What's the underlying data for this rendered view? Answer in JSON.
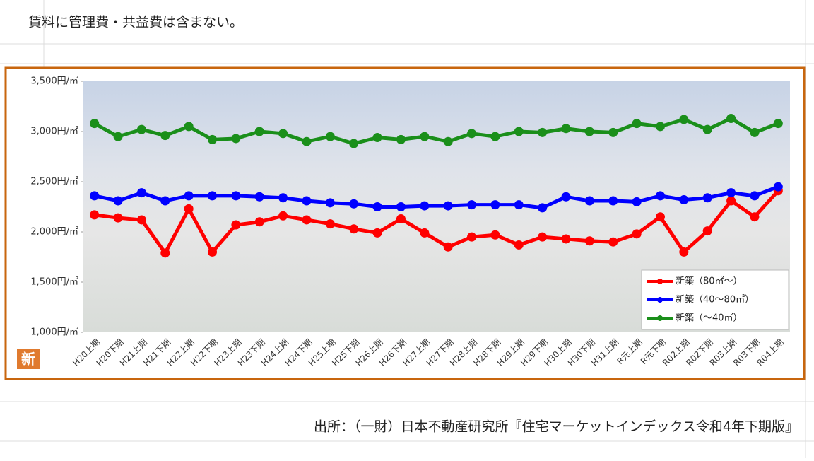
{
  "note": "賃料に管理費・共益費は含まない。",
  "source": "出所：（一財）日本不動産研究所『住宅マーケットインデックス令和4年下期版』",
  "chart_data": {
    "type": "line",
    "categories": [
      "H20上期",
      "H20下期",
      "H21上期",
      "H21下期",
      "H22上期",
      "H22下期",
      "H23上期",
      "H23下期",
      "H24上期",
      "H24下期",
      "H25上期",
      "H25下期",
      "H26上期",
      "H26下期",
      "H27上期",
      "H27下期",
      "H28上期",
      "H28下期",
      "H29上期",
      "H29下期",
      "H30上期",
      "H30下期",
      "H31上期",
      "R元上期",
      "R元下期",
      "R02上期",
      "R02下期",
      "R03上期",
      "R03下期",
      "R04上期"
    ],
    "series": [
      {
        "name": "新築（80㎡～）",
        "color": "#ff0000",
        "values": [
          2170,
          2140,
          2120,
          1790,
          2230,
          1800,
          2070,
          2100,
          2160,
          2120,
          2080,
          2030,
          1990,
          2130,
          1990,
          1850,
          1950,
          1970,
          1870,
          1950,
          1930,
          1910,
          1900,
          1980,
          2150,
          1800,
          2010,
          2310,
          2150,
          2410
        ]
      },
      {
        "name": "新築（40～80㎡）",
        "color": "#0000ff",
        "values": [
          2360,
          2310,
          2390,
          2310,
          2360,
          2360,
          2360,
          2350,
          2340,
          2310,
          2290,
          2280,
          2250,
          2250,
          2260,
          2260,
          2270,
          2270,
          2270,
          2240,
          2350,
          2310,
          2310,
          2300,
          2360,
          2320,
          2340,
          2390,
          2360,
          2450
        ]
      },
      {
        "name": "新築（～40㎡）",
        "color": "#1a8f1a",
        "values": [
          3080,
          2950,
          3020,
          2960,
          3050,
          2920,
          2930,
          3000,
          2980,
          2900,
          2950,
          2880,
          2940,
          2920,
          2950,
          2900,
          2980,
          2950,
          3000,
          2990,
          3030,
          3000,
          2990,
          3080,
          3050,
          3120,
          3020,
          3130,
          2990,
          3080
        ]
      }
    ],
    "ylim": [
      1000,
      3500
    ],
    "yticks": [
      {
        "value": 1000,
        "label": "1,000円/㎡"
      },
      {
        "value": 1500,
        "label": "1,500円/㎡"
      },
      {
        "value": 2000,
        "label": "2,000円/㎡"
      },
      {
        "value": 2500,
        "label": "2,500円/㎡"
      },
      {
        "value": 3000,
        "label": "3,000円/㎡"
      },
      {
        "value": 3500,
        "label": "3,500円/㎡"
      }
    ],
    "legend": "lower right",
    "logo": "新"
  }
}
